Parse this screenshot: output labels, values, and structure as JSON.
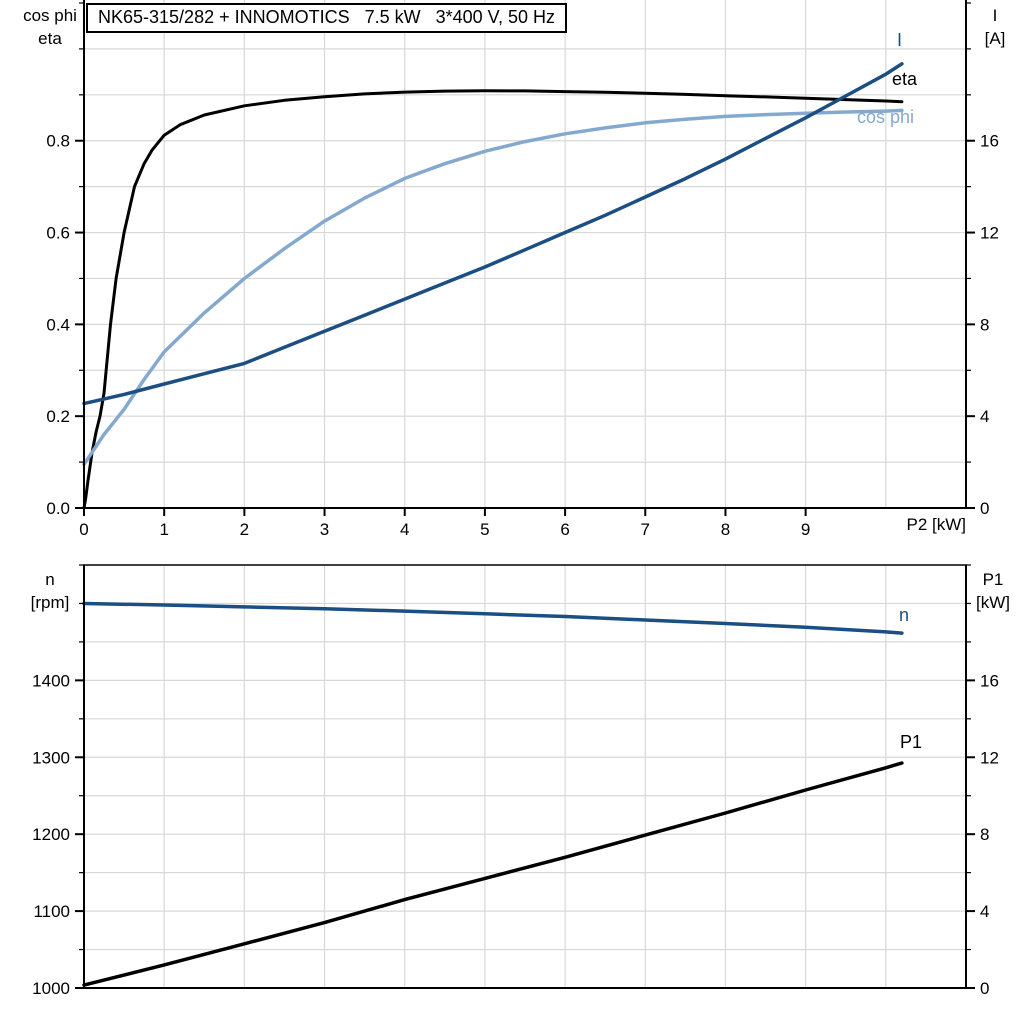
{
  "palette": {
    "dark_blue": "#1b4e82",
    "light_blue": "#85a9ce",
    "black": "#000000",
    "grid": "#d8d8d8",
    "background": "#ffffff"
  },
  "chart_data": [
    {
      "type": "line",
      "title": "NK65-315/282 + INNOMOTICS   7.5 kW   3*400 V, 50 Hz",
      "xlabel": "P2 [kW]",
      "xlim": [
        0,
        11
      ],
      "grid": true,
      "legend_position": "right-end-of-curves",
      "x_tick_values": [
        0,
        1,
        2,
        3,
        4,
        5,
        6,
        7,
        8,
        9
      ],
      "x_tick_labels": [
        "0",
        "1",
        "2",
        "3",
        "4",
        "5",
        "6",
        "7",
        "8",
        "9"
      ],
      "left_axis": {
        "title_line1": "cos phi",
        "title_line2": "eta",
        "lim": [
          0,
          1.1
        ],
        "tick_values": [
          0.0,
          0.2,
          0.4,
          0.6,
          0.8
        ],
        "tick_labels": [
          "0.0",
          "0.2",
          "0.4",
          "0.6",
          "0.8"
        ],
        "minor_tick_step": 0.1
      },
      "right_axis": {
        "title_line1": "I",
        "title_line2": "[A]",
        "lim": [
          0,
          22
        ],
        "tick_values": [
          0,
          4,
          8,
          12,
          16
        ],
        "tick_labels": [
          "0",
          "4",
          "8",
          "12",
          "16"
        ],
        "minor_tick_step": 2
      },
      "series": [
        {
          "name": "eta",
          "axis": "left",
          "color": "#000000",
          "width": 3,
          "x": [
            0,
            0.02,
            0.05,
            0.1,
            0.15,
            0.2,
            0.25,
            0.33,
            0.4,
            0.5,
            0.63,
            0.75,
            0.85,
            1.0,
            1.2,
            1.5,
            2.0,
            2.5,
            3.0,
            3.5,
            4.0,
            4.5,
            5.0,
            5.5,
            6.0,
            6.5,
            7.0,
            7.5,
            8.0,
            8.5,
            9.0,
            9.5,
            10.0,
            10.2
          ],
          "y": [
            0,
            0.02,
            0.06,
            0.12,
            0.165,
            0.2,
            0.25,
            0.4,
            0.5,
            0.6,
            0.7,
            0.75,
            0.78,
            0.812,
            0.835,
            0.856,
            0.876,
            0.888,
            0.896,
            0.902,
            0.906,
            0.908,
            0.909,
            0.9085,
            0.907,
            0.9055,
            0.9035,
            0.901,
            0.898,
            0.8955,
            0.8925,
            0.8895,
            0.8865,
            0.885
          ]
        },
        {
          "name": "cos phi",
          "axis": "left",
          "color": "#85a9ce",
          "width": 3.5,
          "x": [
            0,
            0.25,
            0.5,
            0.75,
            1.0,
            1.5,
            2.0,
            2.5,
            3.0,
            3.5,
            4.0,
            4.5,
            5.0,
            5.5,
            6.0,
            6.5,
            7.0,
            7.5,
            8.0,
            8.5,
            9.0,
            9.5,
            10.0,
            10.2
          ],
          "y": [
            0.095,
            0.16,
            0.215,
            0.28,
            0.34,
            0.425,
            0.5,
            0.565,
            0.625,
            0.675,
            0.718,
            0.75,
            0.777,
            0.798,
            0.815,
            0.828,
            0.839,
            0.847,
            0.853,
            0.857,
            0.86,
            0.8625,
            0.8645,
            0.866
          ]
        },
        {
          "name": "I",
          "axis": "right",
          "color": "#1b4e82",
          "width": 3.5,
          "x": [
            0,
            0.5,
            1.0,
            1.5,
            2.0,
            2.5,
            3.0,
            3.5,
            4.0,
            4.5,
            5.0,
            5.5,
            6.0,
            6.5,
            7.0,
            7.5,
            8.0,
            8.5,
            9.0,
            9.5,
            10.0,
            10.2
          ],
          "y": [
            4.55,
            4.95,
            5.4,
            5.85,
            6.3,
            7.0,
            7.7,
            8.4,
            9.1,
            9.8,
            10.5,
            11.25,
            12.0,
            12.75,
            13.55,
            14.35,
            15.2,
            16.1,
            17.0,
            17.95,
            18.9,
            19.35
          ]
        }
      ]
    },
    {
      "type": "line",
      "title": "",
      "xlabel": "",
      "xlim": [
        0,
        11
      ],
      "grid": true,
      "x_tick_values": [],
      "x_tick_labels": [],
      "left_axis": {
        "title_line1": "n",
        "title_line2": "[rpm]",
        "lim": [
          1000,
          1550
        ],
        "tick_values": [
          1000,
          1100,
          1200,
          1300,
          1400
        ],
        "tick_labels": [
          "1000",
          "1100",
          "1200",
          "1300",
          "1400"
        ],
        "minor_tick_step": 50
      },
      "right_axis": {
        "title_line1": "P1",
        "title_line2": "[kW]",
        "lim": [
          0,
          22
        ],
        "tick_values": [
          0,
          4,
          8,
          12,
          16
        ],
        "tick_labels": [
          "0",
          "4",
          "8",
          "12",
          "16"
        ],
        "minor_tick_step": 2
      },
      "series": [
        {
          "name": "n",
          "axis": "left",
          "color": "#1b4e82",
          "width": 3.5,
          "x": [
            0,
            1,
            2,
            3,
            4,
            5,
            6,
            7,
            8,
            9,
            10,
            10.2
          ],
          "y": [
            1500,
            1498,
            1495.5,
            1493,
            1490,
            1486.5,
            1483,
            1478.5,
            1474,
            1469,
            1463,
            1461.5
          ]
        },
        {
          "name": "P1",
          "axis": "right",
          "color": "#000000",
          "width": 3.5,
          "x": [
            0,
            1,
            2,
            3,
            4,
            5,
            6,
            7,
            8,
            9,
            10,
            10.2
          ],
          "y": [
            0.15,
            1.2,
            2.3,
            3.4,
            4.6,
            5.7,
            6.8,
            7.95,
            9.1,
            10.3,
            11.45,
            11.7
          ]
        }
      ]
    }
  ]
}
